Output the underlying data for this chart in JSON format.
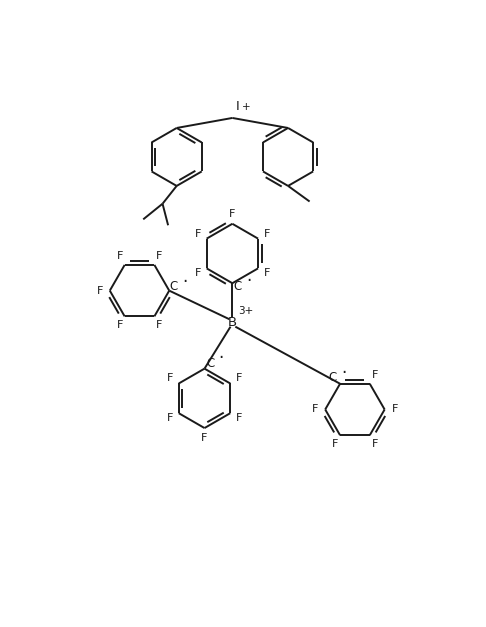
{
  "bg_color": "#ffffff",
  "line_color": "#1a1a1a",
  "line_width": 1.4,
  "figsize": [
    4.86,
    6.27
  ],
  "dpi": 100,
  "xlim": [
    0,
    10
  ],
  "ylim": [
    0,
    13
  ]
}
